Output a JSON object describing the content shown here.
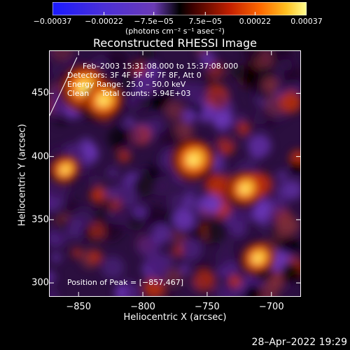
{
  "chart_data": {
    "type": "heatmap",
    "title": "Reconstructed RHESSI Image",
    "xlabel": "Heliocentric X (arcsec)",
    "ylabel": "Heliocentric Y (arcsec)",
    "xlim": [
      -873,
      -677
    ],
    "ylim": [
      289,
      484
    ],
    "x_ticks": [
      -850,
      -800,
      -750,
      -700
    ],
    "x_tick_labels": [
      "−850",
      "−800",
      "−750",
      "−700"
    ],
    "y_ticks": [
      300,
      350,
      400,
      450
    ],
    "y_tick_labels": [
      "300",
      "350",
      "400",
      "450"
    ],
    "colorbar": {
      "range": [
        -0.00037,
        0.00037
      ],
      "tick_values": [
        -0.00037,
        -0.00022,
        -7.5e-05,
        7.5e-05,
        0.00022,
        0.00037
      ],
      "tick_labels": [
        "−0.00037",
        "−0.00022",
        "−7.5e−05",
        "7.5e−05",
        "0.00022",
        "0.00037"
      ],
      "unit_label": "(photons cm⁻² s⁻¹ asec⁻²)"
    },
    "annotations": {
      "time_range": "Feb–2003 15:31:08.000 to 15:37:08.000",
      "detectors": "Detectors: 3F 4F 5F 6F 7F 8F, Att 0",
      "energy_range": "Energy Range: 25.0 – 50.0 keV",
      "method": "Clean     Total counts: 5.94E+03",
      "peak_position": "Position of Peak = [−857,467]"
    },
    "bright_sources": [
      {
        "x": -845,
        "y": 455,
        "intensity": 1.0
      },
      {
        "x": -830,
        "y": 445,
        "intensity": 0.85
      },
      {
        "x": -760,
        "y": 398,
        "intensity": 0.9
      },
      {
        "x": -720,
        "y": 375,
        "intensity": 0.75
      },
      {
        "x": -710,
        "y": 320,
        "intensity": 0.7
      },
      {
        "x": -860,
        "y": 390,
        "intensity": 0.6
      }
    ],
    "grid": false
  },
  "footer": {
    "timestamp": "28–Apr–2022 19:29"
  }
}
